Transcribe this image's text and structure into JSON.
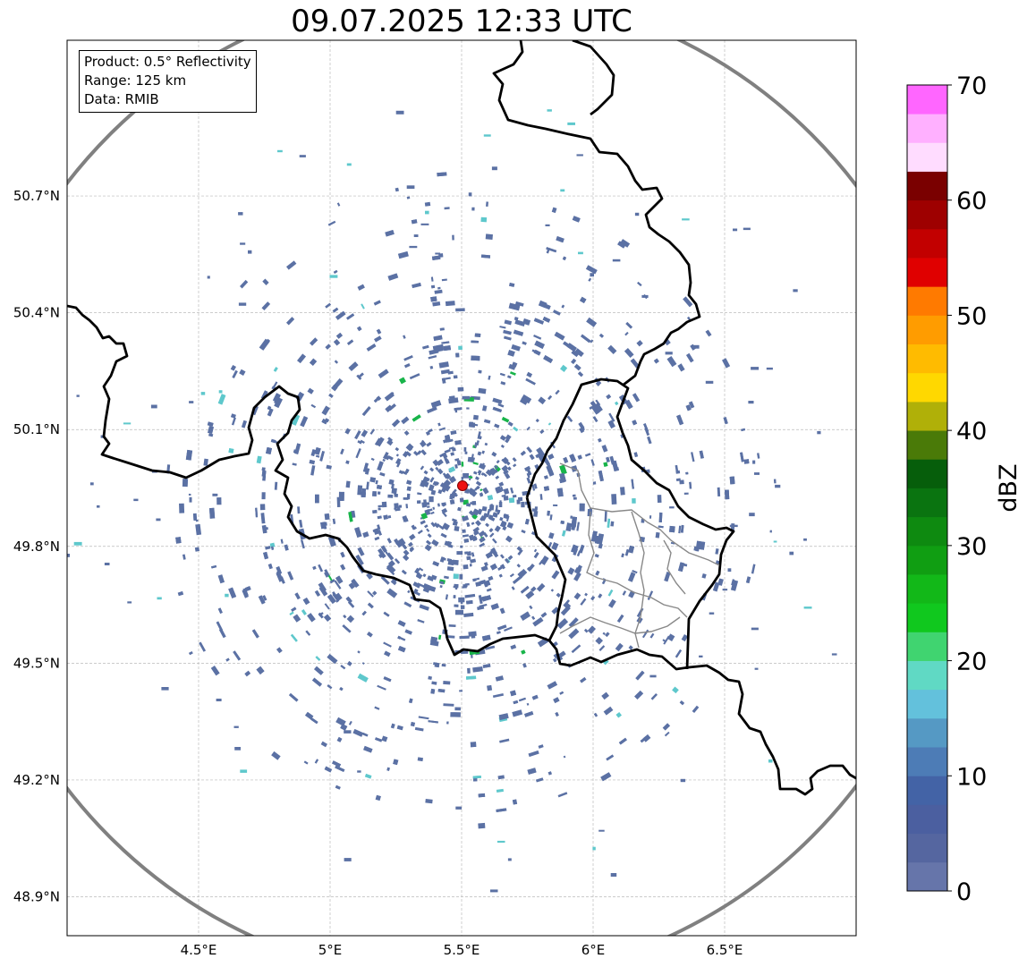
{
  "title": "09.07.2025 12:33 UTC",
  "info_box": {
    "product": "Product: 0.5° Reflectivity",
    "range": "Range: 125 km",
    "data": "Data: RMIB"
  },
  "map": {
    "lon_range": [
      4.0,
      7.0
    ],
    "lat_range": [
      48.8,
      51.1
    ],
    "x_ticks": [
      "4.5°E",
      "5°E",
      "5.5°E",
      "6°E",
      "6.5°E"
    ],
    "y_ticks": [
      "50.7°N",
      "50.4°N",
      "50.1°N",
      "49.8°N",
      "49.5°N",
      "49.2°N",
      "48.9°N"
    ],
    "radar_site": {
      "lon": 5.505,
      "lat": 49.914
    },
    "range_ring_km": 125,
    "grid": true
  },
  "colorbar": {
    "label": "dBZ",
    "min": 0,
    "max": 70,
    "step": 2.5,
    "tick_labels": [
      "70",
      "60",
      "50",
      "40",
      "30",
      "20",
      "10",
      "0"
    ],
    "colors": [
      "#6675aa",
      "#5566a0",
      "#4b5fa0",
      "#4363a6",
      "#4d7cb6",
      "#5599c4",
      "#63c1dc",
      "#60d9c4",
      "#40d470",
      "#10c81e",
      "#12b818",
      "#109e12",
      "#0e8a10",
      "#0a7410",
      "#065e0b",
      "#4a7a08",
      "#b0b008",
      "#ffd800",
      "#ffbb00",
      "#ff9c00",
      "#ff7a00",
      "#e00000",
      "#c20000",
      "#9e0000",
      "#7a0000",
      "#ffdcff",
      "#ffb0ff",
      "#ff66ff",
      "#ee33ee"
    ]
  },
  "echo_colors": {
    "weak": "#5b71a4",
    "light": "#5ec8cc",
    "moderate": "#18b44a"
  }
}
